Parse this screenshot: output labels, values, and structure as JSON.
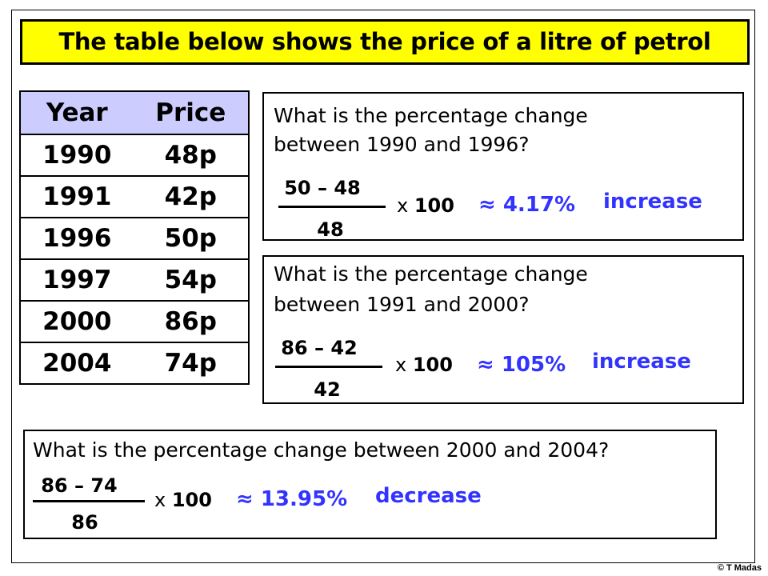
{
  "title": "The table below shows the price of a litre of petrol",
  "table": {
    "headers": [
      "Year",
      "Price"
    ],
    "rows": [
      {
        "year": "1990",
        "price": "48p"
      },
      {
        "year": "1991",
        "price": "42p"
      },
      {
        "year": "1996",
        "price": "50p"
      },
      {
        "year": "1997",
        "price": "54p"
      },
      {
        "year": "2000",
        "price": "86p"
      },
      {
        "year": "2004",
        "price": "74p"
      }
    ]
  },
  "questions": [
    {
      "line1": "What is the percentage change",
      "line2": "between 1990 and 1996?",
      "numerator": "50 – 48",
      "denominator": "48",
      "times": "x",
      "hundred": "100",
      "result": "≈ 4.17%",
      "direction": "increase"
    },
    {
      "line1": "What is the percentage change",
      "line2": "between 1991 and 2000?",
      "numerator": "86 – 42",
      "denominator": "42",
      "times": "x",
      "hundred": "100",
      "result": "≈ 105%",
      "direction": "increase"
    },
    {
      "line1": "What is the percentage change between 2000 and 2004?",
      "numerator": "86 – 74",
      "denominator": "86",
      "times": "x",
      "hundred": "100",
      "result": "≈ 13.95%",
      "direction": "decrease"
    }
  ],
  "copyright": "© T Madas",
  "colors": {
    "title_bg": "#ffff00",
    "header_bg": "#ccccff",
    "answer": "#3333ff"
  }
}
